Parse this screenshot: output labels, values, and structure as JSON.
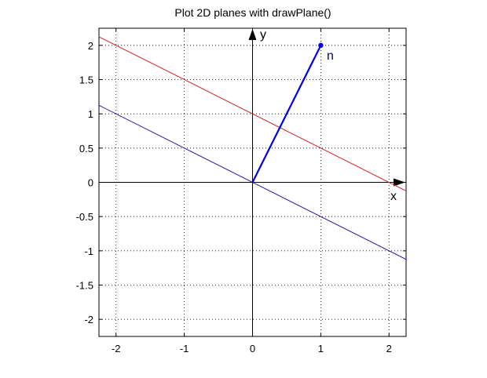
{
  "chart_data": {
    "type": "line",
    "title": "Plot 2D planes with drawPlane()",
    "xlabel": "x",
    "ylabel": "y",
    "xlim": [
      -2.25,
      2.25
    ],
    "ylim": [
      -2.25,
      2.25
    ],
    "grid": true,
    "x_ticks": [
      -2,
      -1,
      0,
      1,
      2
    ],
    "y_ticks": [
      2,
      1.5,
      1,
      0.5,
      0,
      -0.5,
      -1,
      -1.5,
      -2
    ],
    "x_tick_labels": [
      "-2",
      "-1",
      "0",
      "1",
      "2"
    ],
    "y_tick_labels": [
      "2",
      "1.5",
      "1",
      "0.5",
      "0",
      "-0.5",
      "-1",
      "-1.5",
      "-2"
    ],
    "series": [
      {
        "color": "#d62020",
        "x": [
          -2.25,
          2.25
        ],
        "y": [
          2.125,
          -0.125
        ]
      },
      {
        "color": "#1a1aa8",
        "x": [
          -2.25,
          2.25
        ],
        "y": [
          1.125,
          -1.125
        ]
      }
    ],
    "normal_vector": {
      "from": [
        0,
        0
      ],
      "to": [
        1,
        2
      ],
      "color": "#0000ee",
      "label": "n"
    }
  }
}
